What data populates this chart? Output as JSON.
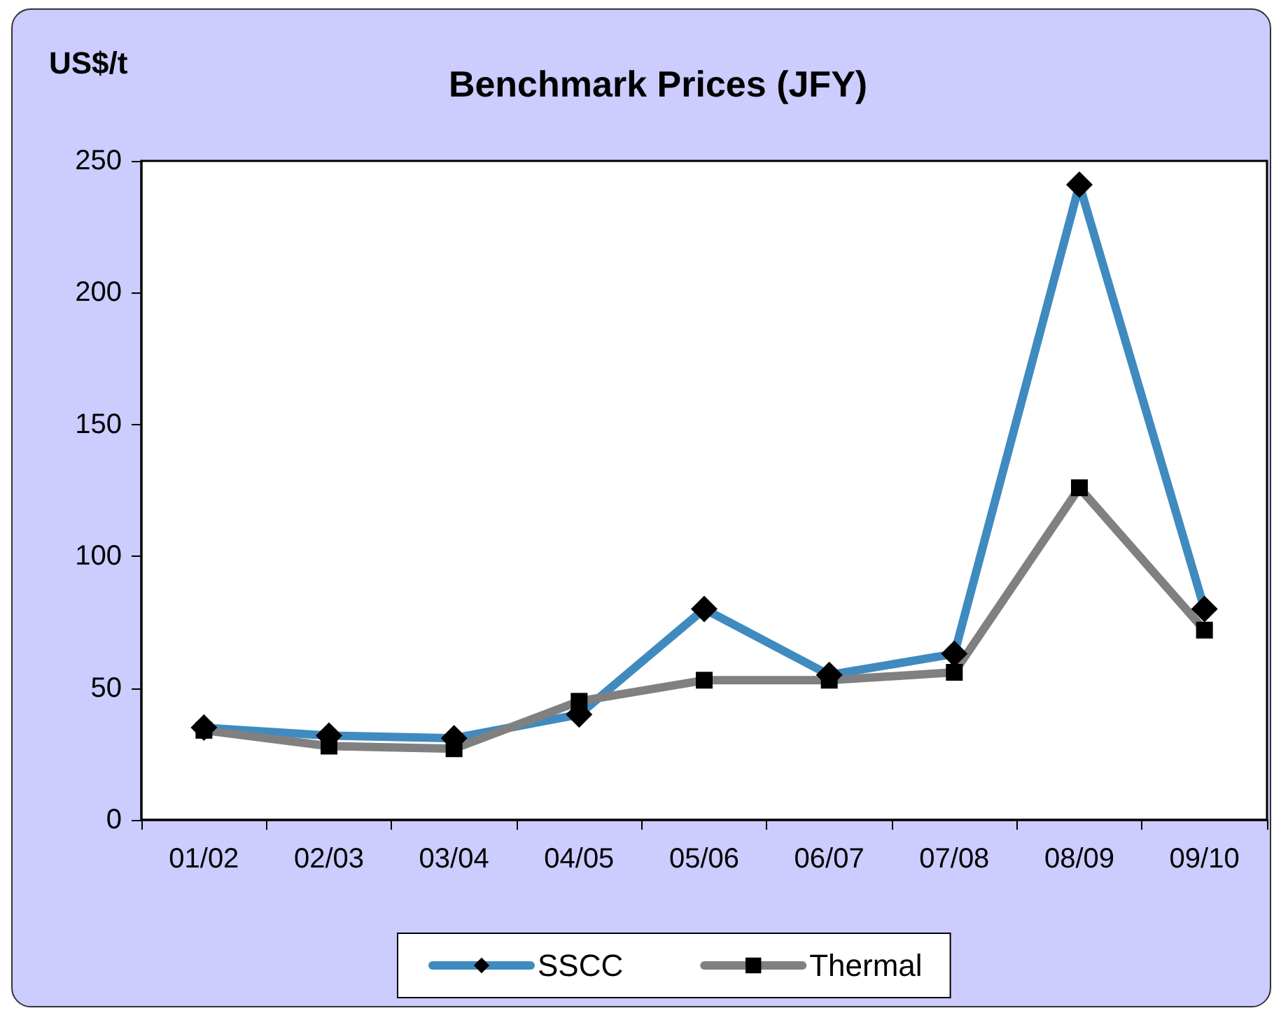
{
  "chart_data": {
    "type": "line",
    "title": "Benchmark Prices (JFY)",
    "ylabel": "US$/t",
    "categories": [
      "01/02",
      "02/03",
      "03/04",
      "04/05",
      "05/06",
      "06/07",
      "07/08",
      "08/09",
      "09/10"
    ],
    "series": [
      {
        "name": "SSCC",
        "color": "#3f8bc0",
        "marker": "diamond",
        "values": [
          35,
          32,
          31,
          40,
          80,
          55,
          63,
          241,
          80
        ]
      },
      {
        "name": "Thermal",
        "color": "#808080",
        "marker": "square",
        "values": [
          34,
          28,
          27,
          45,
          53,
          53,
          56,
          126,
          72
        ]
      }
    ],
    "ylim": [
      0,
      250
    ],
    "yticks": [
      0,
      50,
      100,
      150,
      200,
      250
    ],
    "grid": false,
    "legend": "bottom",
    "line_style": "solid"
  }
}
